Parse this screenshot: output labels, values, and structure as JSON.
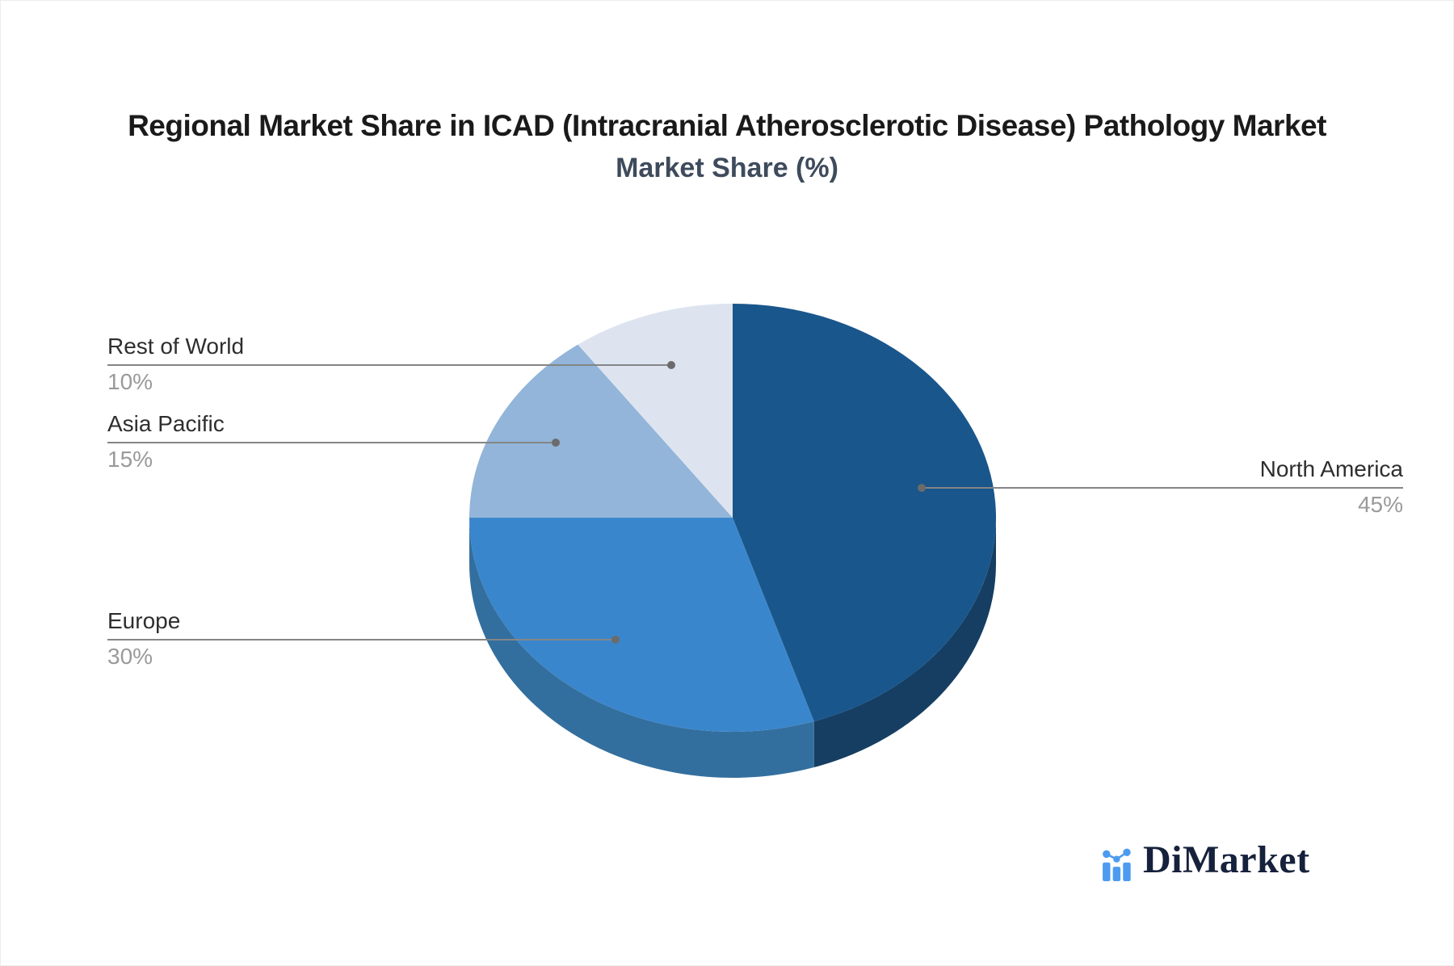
{
  "title": "Regional Market Share in ICAD (Intracranial Atherosclerotic Disease) Pathology Market",
  "subtitle": "Market Share (%)",
  "watermark": {
    "brand": "DiMarket",
    "icon": "bar-chart-trend-icon"
  },
  "chart_data": {
    "type": "pie",
    "title": "Regional Market Share in ICAD (Intracranial Atherosclerotic Disease) Pathology Market",
    "subtitle": "Market Share (%)",
    "unit": "%",
    "style": "3d-depth",
    "direction": "clockwise",
    "start_angle_deg": 0,
    "legend_position": "callout-labels",
    "slices": [
      {
        "label": "North America",
        "value": 45,
        "display": "45%",
        "color": "#19568C",
        "depth_color": "#163E62",
        "callout_side": "right"
      },
      {
        "label": "Europe",
        "value": 30,
        "display": "30%",
        "color": "#3A86CC",
        "depth_color": "#336F9E",
        "callout_side": "left"
      },
      {
        "label": "Asia Pacific",
        "value": 15,
        "display": "15%",
        "color": "#92B5D9",
        "depth_color": "#6E8FB3",
        "callout_side": "left"
      },
      {
        "label": "Rest of World",
        "value": 10,
        "display": "10%",
        "color": "#DDE4EF",
        "depth_color": "#ABB6C9",
        "callout_side": "left"
      }
    ],
    "colors": {
      "background": "#FFFFFF",
      "title_text": "#1A1A1A",
      "subtitle_text": "#3E4B5C",
      "label_text": "#2E2E2E",
      "percent_text": "#9A9A9A",
      "callout_line": "#858585",
      "callout_dot": "#6B6B6B",
      "logo_text": "#16213C",
      "logo_icon": "#4D9BF0"
    }
  }
}
